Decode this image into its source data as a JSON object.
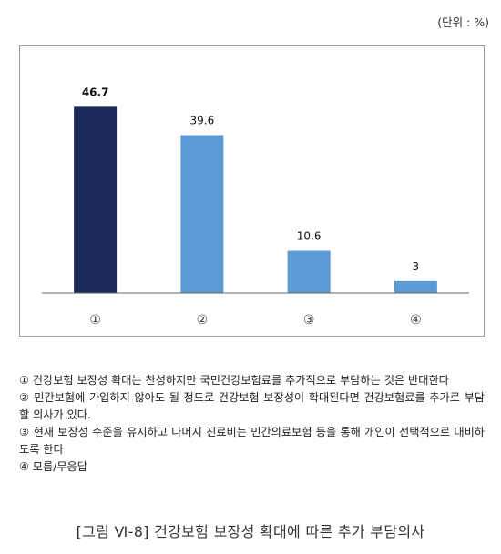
{
  "unit_label": "(단위 : %)",
  "chart_data": {
    "type": "bar",
    "categories": [
      "①",
      "②",
      "③",
      "④"
    ],
    "values": [
      46.7,
      39.6,
      10.6,
      3
    ],
    "value_labels": [
      "46.7",
      "39.6",
      "10.6",
      "3"
    ],
    "ylim": [
      0,
      55
    ],
    "highlight_index": 0,
    "colors": {
      "highlight": "#1b2a58",
      "default": "#5b9bd5"
    },
    "title": "",
    "xlabel": "",
    "ylabel": "",
    "grid": false
  },
  "notes": [
    "① 건강보험 보장성 확대는 찬성하지만 국민건강보험료를 추가적으로 부담하는 것은 반대한다",
    "② 민간보험에 가입하지 않아도 될 정도로 건강보험 보장성이 확대된다면 건강보험료를 추가로 부담할 의사가 있다.",
    "③ 현재 보장성 수준을 유지하고 나머지 진료비는 민간의료보험 등을 통해 개인이 선택적으로 대비하도록 한다",
    "④ 모름/무응답"
  ],
  "caption": "[그림 Ⅵ-8] 건강보험 보장성 확대에 따른 추가 부담의사"
}
